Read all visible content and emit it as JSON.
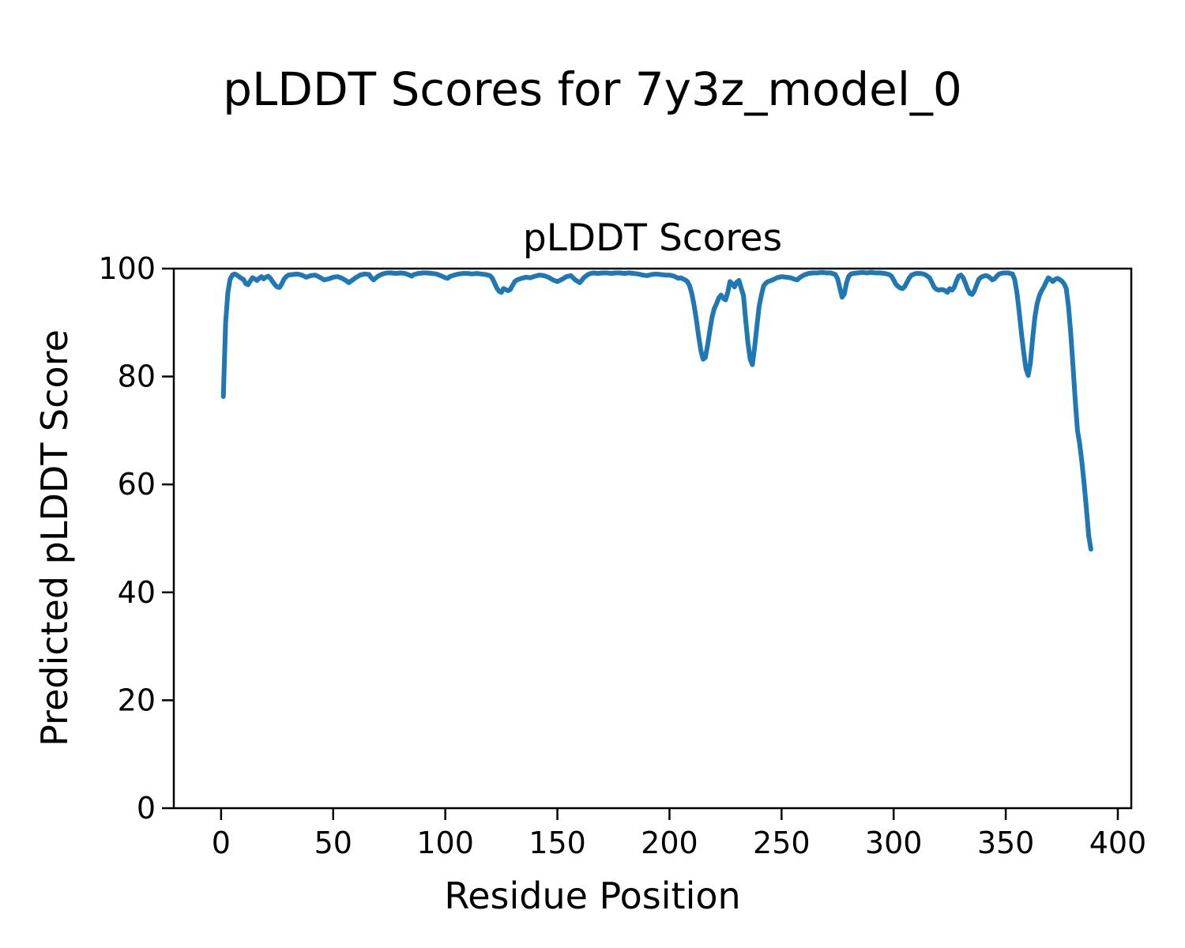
{
  "page": {
    "background_color": "#ffffff",
    "text_color": "#000000"
  },
  "figure": {
    "suptitle": "pLDDT Scores for 7y3z_model_0"
  },
  "chart_data": {
    "type": "line",
    "suptitle": "pLDDT Scores for 7y3z_model_0",
    "title": "pLDDT Scores",
    "xlabel": "Residue Position",
    "ylabel": "Predicted pLDDT Score",
    "legend": "none",
    "grid": false,
    "line_color": "#1f77b4",
    "line_width": 6,
    "axis_color": "#000000",
    "xlim": [
      -21.1,
      406.0
    ],
    "ylim": [
      0,
      100
    ],
    "xticks": [
      0,
      50,
      100,
      150,
      200,
      250,
      300,
      350,
      400
    ],
    "yticks": [
      0,
      20,
      40,
      60,
      80,
      100
    ],
    "x": [
      1,
      2,
      3,
      4,
      5,
      6,
      7,
      8,
      9,
      10,
      11,
      12,
      13,
      14,
      15,
      16,
      17,
      18,
      19,
      20,
      21,
      22,
      23,
      24,
      25,
      26,
      27,
      28,
      29,
      30,
      32,
      34,
      36,
      38,
      40,
      42,
      44,
      46,
      48,
      50,
      52,
      54,
      56,
      57,
      58,
      60,
      62,
      64,
      66,
      67,
      68,
      70,
      72,
      74,
      76,
      78,
      80,
      82,
      84,
      85,
      86,
      88,
      90,
      92,
      94,
      96,
      98,
      100,
      101,
      102,
      104,
      106,
      108,
      110,
      112,
      114,
      116,
      118,
      120,
      121,
      122,
      123,
      124,
      125,
      126,
      127,
      128,
      129,
      130,
      131,
      132,
      134,
      136,
      138,
      140,
      142,
      144,
      146,
      148,
      150,
      152,
      154,
      156,
      158,
      160,
      162,
      164,
      166,
      168,
      170,
      172,
      174,
      176,
      178,
      180,
      182,
      184,
      186,
      188,
      190,
      192,
      194,
      196,
      198,
      200,
      202,
      204,
      205,
      206,
      207,
      208,
      209,
      210,
      211,
      212,
      213,
      214,
      215,
      216,
      217,
      218,
      219,
      220,
      221,
      222,
      223,
      224,
      225,
      226,
      227,
      228,
      229,
      230,
      231,
      232,
      233,
      234,
      235,
      236,
      237,
      238,
      239,
      240,
      241,
      242,
      243,
      244,
      246,
      248,
      250,
      252,
      254,
      256,
      257,
      258,
      260,
      262,
      264,
      266,
      268,
      270,
      272,
      274,
      275,
      276,
      277,
      278,
      279,
      280,
      281,
      282,
      284,
      286,
      288,
      290,
      292,
      294,
      296,
      298,
      299,
      300,
      301,
      302,
      303,
      304,
      305,
      306,
      307,
      308,
      310,
      312,
      314,
      316,
      317,
      318,
      319,
      320,
      321,
      322,
      323,
      324,
      325,
      326,
      327,
      328,
      329,
      330,
      331,
      332,
      333,
      334,
      335,
      336,
      337,
      338,
      339,
      340,
      341,
      342,
      343,
      344,
      345,
      346,
      347,
      348,
      349,
      350,
      351,
      352,
      353,
      354,
      355,
      356,
      357,
      358,
      359,
      360,
      361,
      362,
      363,
      364,
      365,
      366,
      367,
      368,
      369,
      370,
      371,
      372,
      373,
      374,
      375,
      376,
      377,
      378,
      379,
      380,
      381,
      382,
      383,
      384,
      385,
      386,
      387,
      388
    ],
    "y": [
      76.3,
      90.0,
      95.5,
      98.0,
      98.8,
      99.0,
      98.8,
      98.5,
      98.2,
      98.0,
      97.2,
      97.0,
      97.7,
      98.3,
      98.1,
      97.8,
      98.2,
      98.5,
      98.1,
      98.4,
      98.6,
      98.2,
      97.6,
      97.0,
      96.6,
      96.5,
      97.1,
      98.0,
      98.5,
      98.8,
      98.9,
      99.0,
      98.8,
      98.4,
      98.7,
      98.8,
      98.4,
      97.9,
      98.1,
      98.4,
      98.5,
      98.2,
      97.7,
      97.4,
      97.7,
      98.3,
      98.8,
      99.0,
      98.9,
      98.3,
      97.9,
      98.6,
      99.0,
      99.2,
      99.2,
      99.1,
      99.2,
      99.1,
      98.8,
      98.6,
      98.9,
      99.1,
      99.2,
      99.2,
      99.1,
      99.0,
      98.7,
      98.3,
      98.2,
      98.5,
      98.8,
      99.0,
      99.1,
      99.1,
      99.0,
      99.1,
      99.0,
      98.9,
      98.7,
      98.2,
      97.3,
      96.4,
      95.8,
      95.6,
      96.3,
      96.1,
      95.9,
      96.1,
      96.9,
      97.6,
      97.9,
      98.2,
      98.4,
      98.3,
      98.6,
      98.8,
      98.7,
      98.4,
      97.9,
      97.6,
      98.0,
      98.5,
      98.7,
      97.9,
      97.4,
      98.4,
      99.0,
      99.2,
      99.1,
      99.2,
      99.2,
      99.1,
      99.2,
      99.2,
      99.1,
      99.2,
      99.1,
      99.0,
      98.8,
      98.7,
      98.9,
      99.0,
      98.9,
      98.8,
      98.8,
      98.6,
      98.2,
      98.3,
      98.1,
      97.9,
      97.6,
      96.8,
      95.3,
      93.2,
      90.5,
      87.5,
      84.8,
      83.2,
      83.5,
      85.8,
      88.5,
      91.0,
      92.6,
      93.5,
      94.6,
      95.1,
      94.5,
      94.2,
      95.6,
      97.6,
      97.2,
      96.6,
      97.5,
      97.8,
      96.4,
      95.0,
      90.5,
      86.3,
      83.2,
      82.2,
      85.5,
      89.3,
      93.0,
      95.1,
      96.8,
      97.3,
      97.6,
      97.9,
      98.3,
      98.5,
      98.4,
      98.3,
      98.0,
      97.9,
      98.3,
      98.8,
      99.1,
      99.2,
      99.2,
      99.3,
      99.2,
      99.2,
      98.9,
      98.1,
      96.4,
      94.7,
      95.3,
      97.4,
      98.6,
      99.0,
      99.1,
      99.2,
      99.3,
      99.2,
      99.3,
      99.2,
      99.2,
      99.1,
      98.9,
      98.6,
      97.9,
      97.1,
      96.7,
      96.4,
      96.3,
      96.7,
      97.5,
      98.3,
      98.8,
      99.1,
      99.1,
      98.9,
      98.3,
      97.5,
      96.6,
      96.2,
      96.0,
      96.1,
      96.1,
      95.9,
      95.6,
      96.3,
      96.0,
      96.5,
      97.7,
      98.6,
      98.8,
      98.3,
      97.3,
      96.2,
      95.4,
      95.2,
      95.9,
      97.0,
      98.0,
      98.4,
      98.6,
      98.7,
      98.6,
      98.3,
      97.9,
      98.1,
      98.6,
      99.0,
      99.1,
      99.2,
      99.2,
      99.2,
      99.1,
      99.0,
      98.0,
      95.5,
      92.0,
      88.0,
      84.5,
      81.5,
      80.2,
      82.5,
      87.0,
      91.0,
      93.5,
      95.0,
      95.9,
      96.6,
      97.5,
      98.3,
      98.0,
      97.6,
      98.0,
      98.2,
      98.0,
      97.7,
      97.2,
      96.3,
      93.0,
      88.0,
      82.0,
      75.5,
      70.0,
      67.5,
      64.0,
      60.0,
      55.5,
      50.5,
      48.0
    ]
  }
}
